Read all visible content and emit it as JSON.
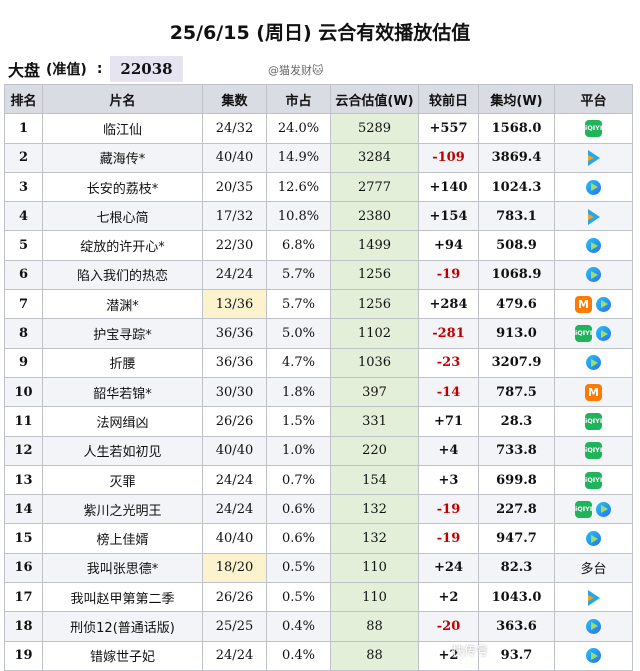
{
  "title": "25/6/15 (周日) 云合有效播放估值",
  "market": {
    "label": "大盘",
    "sub": "(准值)",
    "colon": ":",
    "value": "22038"
  },
  "watermark": "@猫发财🐱",
  "corner_mark": "快传号",
  "headers": [
    "排名",
    "片名",
    "集数",
    "市占",
    "云合估值(W)",
    "较前日",
    "集均(W)",
    "平台"
  ],
  "rows": [
    {
      "rank": "1",
      "name": "临江仙",
      "eps": "24/32",
      "share": "24.0%",
      "val": "5289",
      "diff": "+557",
      "avg": "1568.0",
      "platforms": [
        "iqiyi"
      ]
    },
    {
      "rank": "2",
      "name": "藏海传*",
      "eps": "40/40",
      "share": "14.9%",
      "val": "3284",
      "diff": "-109",
      "avg": "3869.4",
      "platforms": [
        "tencent"
      ]
    },
    {
      "rank": "3",
      "name": "长安的荔枝*",
      "eps": "20/35",
      "share": "12.6%",
      "val": "2777",
      "diff": "+140",
      "avg": "1024.3",
      "platforms": [
        "youku"
      ]
    },
    {
      "rank": "4",
      "name": "七根心简",
      "eps": "17/32",
      "share": "10.8%",
      "val": "2380",
      "diff": "+154",
      "avg": "783.1",
      "platforms": [
        "tencent"
      ]
    },
    {
      "rank": "5",
      "name": "绽放的许开心*",
      "eps": "22/30",
      "share": "6.8%",
      "val": "1499",
      "diff": "+94",
      "avg": "508.9",
      "platforms": [
        "youku"
      ]
    },
    {
      "rank": "6",
      "name": "陷入我们的热恋",
      "eps": "24/24",
      "share": "5.7%",
      "val": "1256",
      "diff": "-19",
      "avg": "1068.9",
      "platforms": [
        "youku"
      ]
    },
    {
      "rank": "7",
      "name": "潜渊*",
      "eps": "13/36",
      "share": "5.7%",
      "val": "1256",
      "diff": "+284",
      "avg": "479.6",
      "platforms": [
        "mgtv",
        "youku"
      ],
      "eps_highlight": true
    },
    {
      "rank": "8",
      "name": "护宝寻踪*",
      "eps": "36/36",
      "share": "5.0%",
      "val": "1102",
      "diff": "-281",
      "avg": "913.0",
      "platforms": [
        "iqiyi",
        "youku"
      ]
    },
    {
      "rank": "9",
      "name": "折腰",
      "eps": "36/36",
      "share": "4.7%",
      "val": "1036",
      "diff": "-23",
      "avg": "3207.9",
      "platforms": [
        "youku"
      ]
    },
    {
      "rank": "10",
      "name": "韶华若锦*",
      "eps": "30/30",
      "share": "1.8%",
      "val": "397",
      "diff": "-14",
      "avg": "787.5",
      "platforms": [
        "mgtv"
      ]
    },
    {
      "rank": "11",
      "name": "法网缉凶",
      "eps": "26/26",
      "share": "1.5%",
      "val": "331",
      "diff": "+71",
      "avg": "28.3",
      "platforms": [
        "iqiyi"
      ]
    },
    {
      "rank": "12",
      "name": "人生若如初见",
      "eps": "40/40",
      "share": "1.0%",
      "val": "220",
      "diff": "+4",
      "avg": "733.8",
      "platforms": [
        "iqiyi"
      ]
    },
    {
      "rank": "13",
      "name": "灭罪",
      "eps": "24/24",
      "share": "0.7%",
      "val": "154",
      "diff": "+3",
      "avg": "699.8",
      "platforms": [
        "iqiyi"
      ]
    },
    {
      "rank": "14",
      "name": "紫川之光明王",
      "eps": "24/24",
      "share": "0.6%",
      "val": "132",
      "diff": "-19",
      "avg": "227.8",
      "platforms": [
        "iqiyi",
        "youku"
      ]
    },
    {
      "rank": "15",
      "name": "榜上佳婿",
      "eps": "40/40",
      "share": "0.6%",
      "val": "132",
      "diff": "-19",
      "avg": "947.7",
      "platforms": [
        "youku"
      ]
    },
    {
      "rank": "16",
      "name": "我叫张思德*",
      "eps": "18/20",
      "share": "0.5%",
      "val": "110",
      "diff": "+24",
      "avg": "82.3",
      "platforms_text": "多台",
      "eps_highlight": true
    },
    {
      "rank": "17",
      "name": "我叫赵甲第第二季",
      "eps": "26/26",
      "share": "0.5%",
      "val": "110",
      "diff": "+2",
      "avg": "1043.0",
      "platforms": [
        "tencent"
      ]
    },
    {
      "rank": "18",
      "name": "刑侦12(普通话版)",
      "eps": "25/25",
      "share": "0.4%",
      "val": "88",
      "diff": "-20",
      "avg": "363.6",
      "platforms": [
        "youku"
      ]
    },
    {
      "rank": "19",
      "name": "错嫁世子妃",
      "eps": "24/24",
      "share": "0.4%",
      "val": "88",
      "diff": "+2",
      "avg": "93.7",
      "platforms": [
        "youku"
      ]
    }
  ],
  "platform_icons": {
    "iqiyi": "iqiyi-icon",
    "tencent": "tencent-video-icon",
    "youku": "youku-icon",
    "mgtv": "mgtv-icon"
  },
  "platform_glyphs": {
    "iqiyi": "iQIYI",
    "mgtv": "M"
  },
  "colors": {
    "value_column": "#e3efd9",
    "negative": "#c00000",
    "highlight": "#fbf3cd",
    "header": "#d9dce3"
  }
}
